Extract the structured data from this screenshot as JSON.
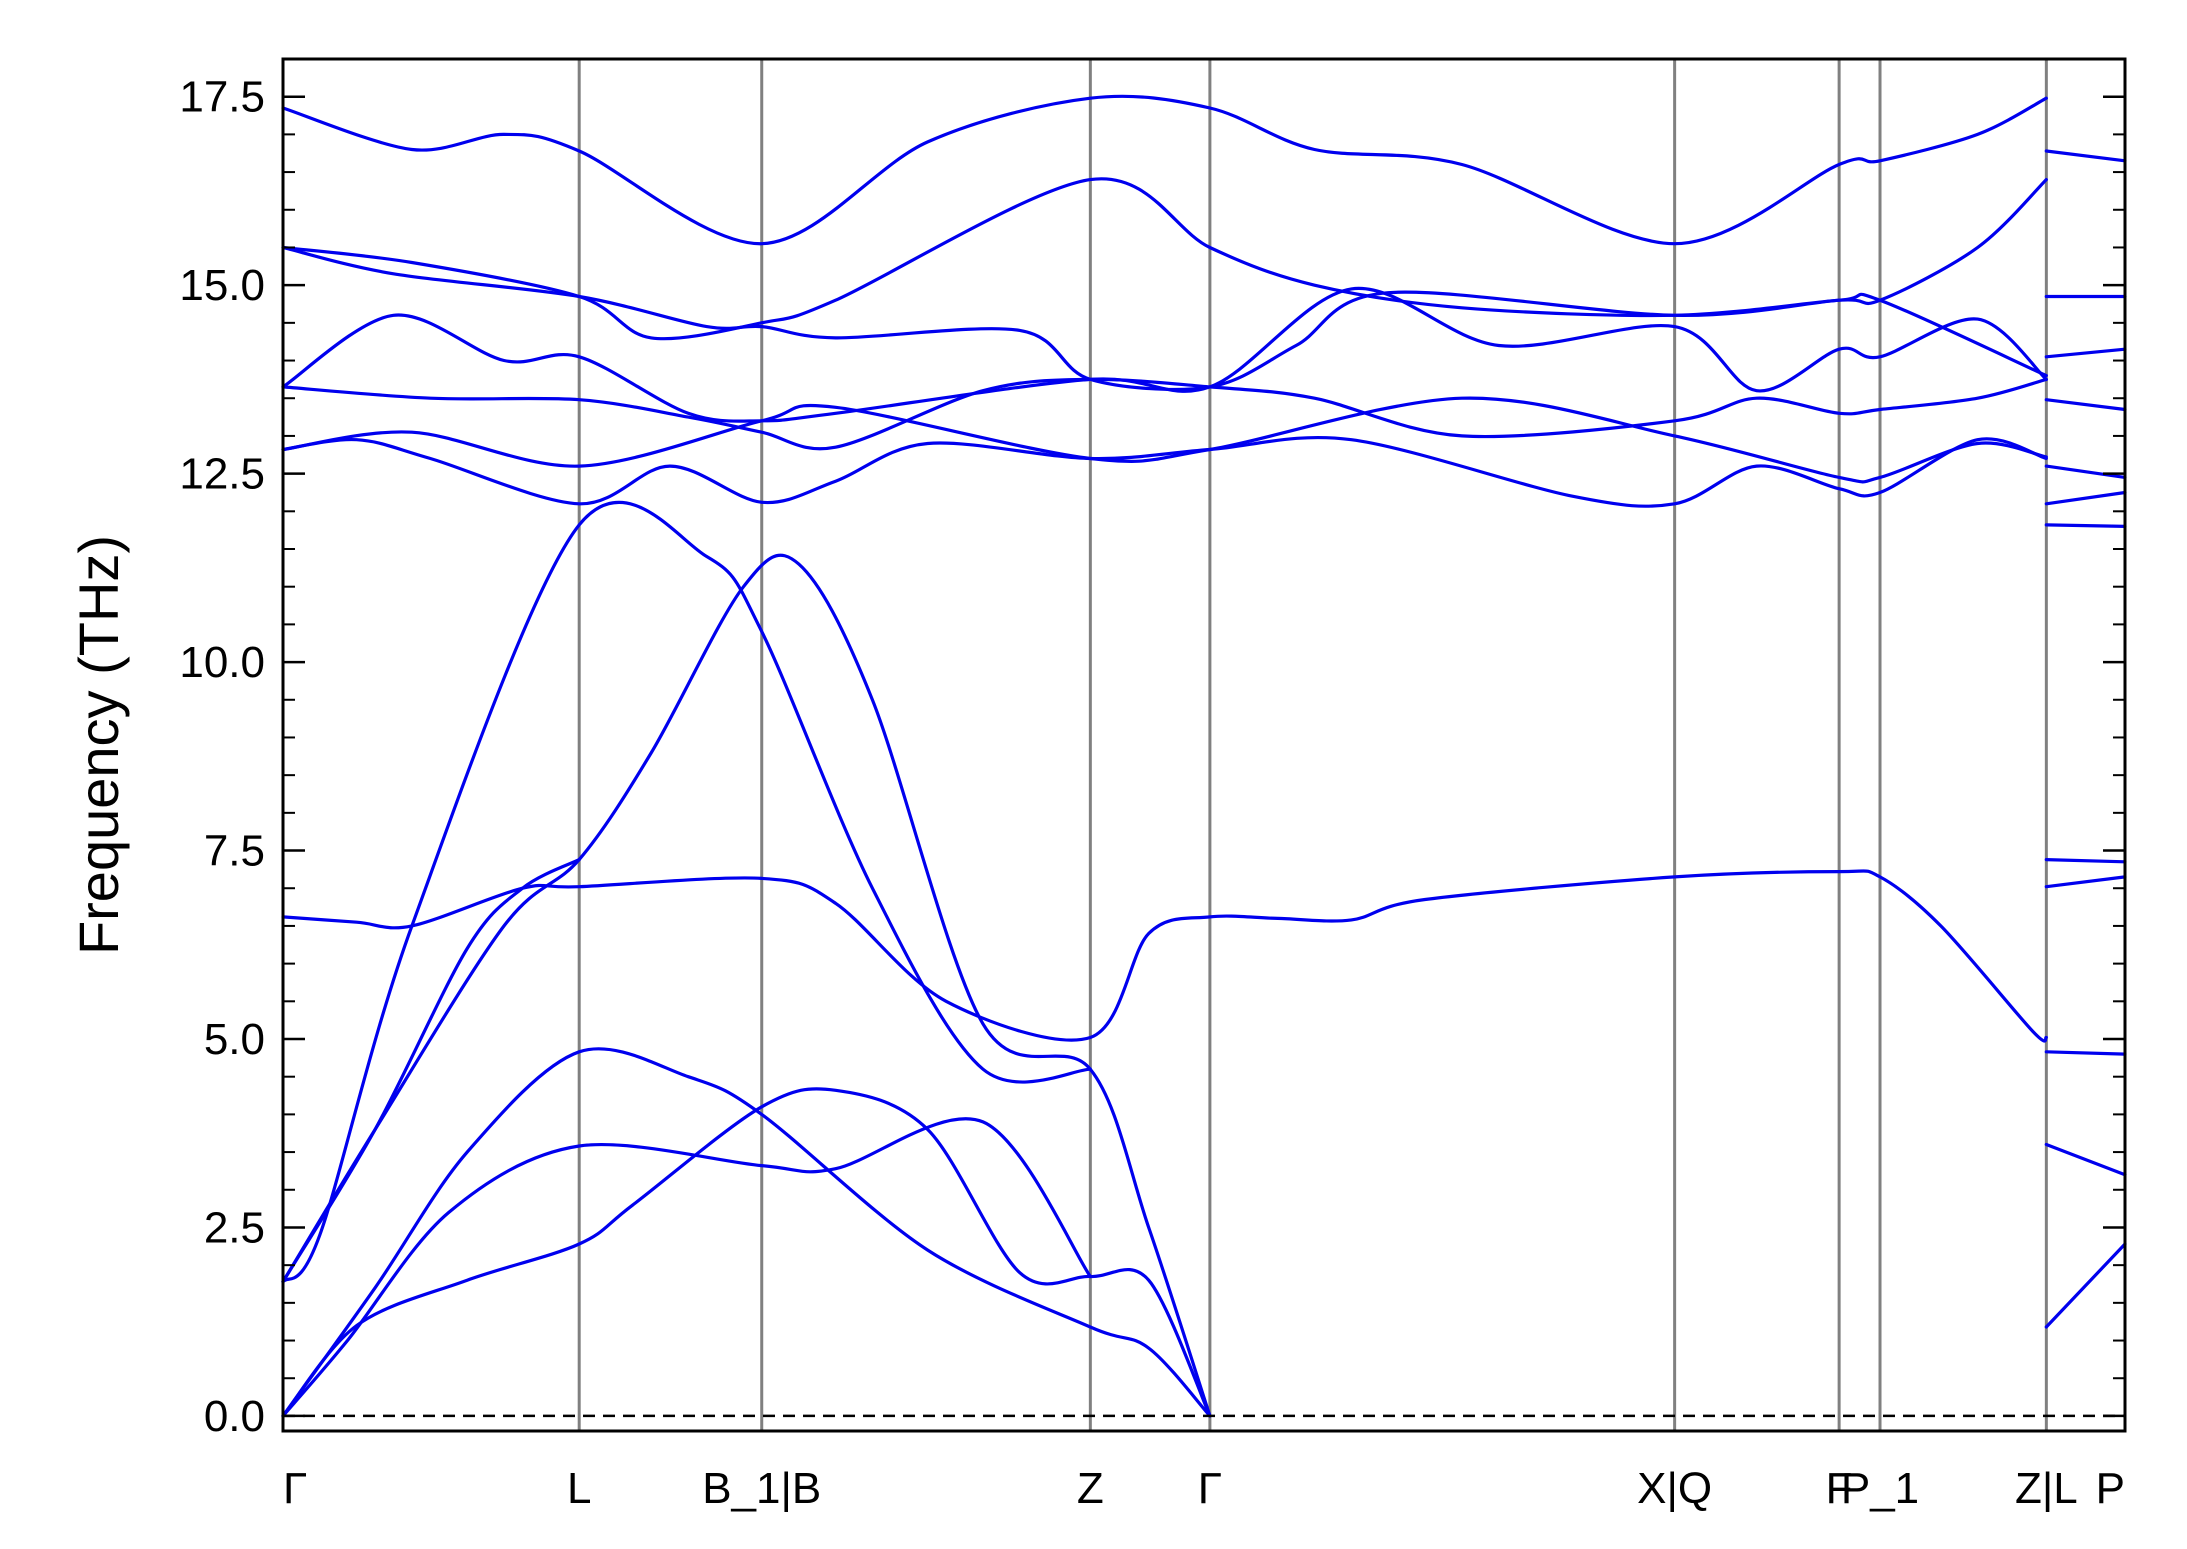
{
  "chart_data": {
    "type": "line",
    "title": "",
    "xlabel": "",
    "ylabel": "Frequency (THz)",
    "ylim": [
      -0.2,
      18.0
    ],
    "grid": false,
    "legend": "none",
    "line_color": "#0000ee",
    "kpoint_line_color": "#808080",
    "zero_line": {
      "y": 0.0,
      "style": "dashed",
      "color": "#000000"
    },
    "yticks": [
      "0.0",
      "2.5",
      "5.0",
      "7.5",
      "10.0",
      "12.5",
      "15.0",
      "17.5"
    ],
    "ytick_values": [
      0.0,
      2.5,
      5.0,
      7.5,
      10.0,
      12.5,
      15.0,
      17.5
    ],
    "kpoints": [
      {
        "label": "Γ",
        "x": 0.0
      },
      {
        "label": "L",
        "x": 0.1608
      },
      {
        "label": "B_1|B",
        "x": 0.2599
      },
      {
        "label": "Z",
        "x": 0.4383
      },
      {
        "label": "Γ",
        "x": 0.5032
      },
      {
        "label": "X|Q",
        "x": 0.7555
      },
      {
        "label": "F",
        "x": 0.8448
      },
      {
        "label": "P_1",
        "x": 0.867
      },
      {
        "label": "Z|L",
        "x": 0.9573
      },
      {
        "label": "P",
        "x": 1.0
      }
    ],
    "bands": [
      {
        "name": "band-1",
        "points": [
          [
            0,
            0
          ],
          [
            0.04,
            1.2
          ],
          [
            0.1,
            1.8
          ],
          [
            0.1608,
            2.28
          ],
          [
            0.19,
            2.8
          ],
          [
            0.2599,
            4.1
          ],
          [
            0.3,
            4.32
          ],
          [
            0.35,
            3.8
          ],
          [
            0.4,
            1.9
          ],
          [
            0.4383,
            1.85
          ],
          [
            0.47,
            1.8
          ],
          [
            0.5032,
            0
          ]
        ]
      },
      {
        "name": "band-2",
        "points": [
          [
            0,
            0
          ],
          [
            0.035,
            1.0
          ],
          [
            0.09,
            2.7
          ],
          [
            0.1608,
            3.58
          ],
          [
            0.2599,
            3.32
          ],
          [
            0.3,
            3.28
          ],
          [
            0.38,
            3.9
          ],
          [
            0.4383,
            1.85
          ]
        ]
      },
      {
        "name": "band-3",
        "points": [
          [
            0,
            0
          ],
          [
            0.05,
            1.7
          ],
          [
            0.1,
            3.5
          ],
          [
            0.1608,
            4.83
          ],
          [
            0.22,
            4.5
          ],
          [
            0.2599,
            4.0
          ],
          [
            0.35,
            2.2
          ],
          [
            0.4383,
            1.18
          ],
          [
            0.47,
            0.9
          ],
          [
            0.5032,
            0
          ]
        ]
      },
      {
        "name": "band-4",
        "points": [
          [
            0,
            1.78
          ],
          [
            0.05,
            3.8
          ],
          [
            0.12,
            6.5
          ],
          [
            0.1608,
            7.38
          ],
          [
            0.2,
            8.8
          ],
          [
            0.25,
            11.0
          ],
          [
            0.28,
            11.3
          ],
          [
            0.32,
            9.5
          ],
          [
            0.38,
            5.2
          ],
          [
            0.4383,
            4.6
          ],
          [
            0.47,
            2.5
          ],
          [
            0.5032,
            0
          ]
        ]
      },
      {
        "name": "band-5",
        "points": [
          [
            0,
            1.78
          ],
          [
            0.02,
            2.4
          ],
          [
            0.07,
            6.5
          ],
          [
            0.1608,
            11.82
          ],
          [
            0.23,
            11.4
          ],
          [
            0.26,
            10.4
          ],
          [
            0.32,
            7.0
          ],
          [
            0.38,
            4.6
          ],
          [
            0.4383,
            4.6
          ]
        ]
      },
      {
        "name": "band-6",
        "points": [
          [
            0,
            6.62
          ],
          [
            0.04,
            6.55
          ],
          [
            0.07,
            6.5
          ],
          [
            0.13,
            7.0
          ],
          [
            0.1608,
            7.02
          ],
          [
            0.2599,
            7.13
          ],
          [
            0.3,
            6.8
          ],
          [
            0.36,
            5.5
          ],
          [
            0.4383,
            5.02
          ],
          [
            0.47,
            6.4
          ],
          [
            0.5032,
            6.62
          ],
          [
            0.54,
            6.6
          ],
          [
            0.58,
            6.58
          ],
          [
            0.62,
            6.85
          ],
          [
            0.7555,
            7.15
          ],
          [
            0.8448,
            7.22
          ],
          [
            0.867,
            7.15
          ],
          [
            0.9,
            6.5
          ],
          [
            0.95,
            5.1
          ],
          [
            0.9573,
            5.02
          ]
        ]
      },
      {
        "name": "band-7",
        "points": [
          [
            0,
            1.78
          ],
          [
            0.05,
            3.8
          ],
          [
            0.1,
            6.2
          ],
          [
            0.13,
            7.0
          ],
          [
            0.1608,
            7.38
          ]
        ]
      },
      {
        "name": "band-8",
        "points": [
          [
            0,
            12.82
          ],
          [
            0.04,
            12.95
          ],
          [
            0.08,
            12.7
          ],
          [
            0.1608,
            12.1
          ],
          [
            0.21,
            12.6
          ],
          [
            0.2599,
            12.12
          ],
          [
            0.3,
            12.4
          ],
          [
            0.35,
            12.9
          ],
          [
            0.4383,
            12.7
          ],
          [
            0.5032,
            12.82
          ],
          [
            0.58,
            12.95
          ],
          [
            0.7,
            12.2
          ],
          [
            0.7555,
            12.1
          ],
          [
            0.8,
            12.6
          ],
          [
            0.8448,
            12.3
          ],
          [
            0.867,
            12.25
          ],
          [
            0.92,
            12.95
          ],
          [
            0.9573,
            12.7
          ]
        ]
      },
      {
        "name": "band-9",
        "points": [
          [
            0,
            12.82
          ],
          [
            0.07,
            13.05
          ],
          [
            0.1608,
            12.6
          ],
          [
            0.2599,
            13.2
          ],
          [
            0.3,
            13.38
          ],
          [
            0.4383,
            12.7
          ],
          [
            0.5032,
            12.82
          ],
          [
            0.64,
            13.5
          ],
          [
            0.7555,
            13.0
          ],
          [
            0.8448,
            12.45
          ],
          [
            0.867,
            12.45
          ],
          [
            0.92,
            12.9
          ],
          [
            0.9573,
            12.72
          ]
        ]
      },
      {
        "name": "band-10",
        "points": [
          [
            0,
            13.65
          ],
          [
            0.08,
            13.5
          ],
          [
            0.1608,
            13.48
          ],
          [
            0.22,
            13.25
          ],
          [
            0.2599,
            13.05
          ],
          [
            0.3,
            12.85
          ],
          [
            0.38,
            13.6
          ],
          [
            0.4383,
            13.75
          ],
          [
            0.5032,
            13.65
          ],
          [
            0.56,
            13.5
          ],
          [
            0.64,
            13.0
          ],
          [
            0.7555,
            13.2
          ],
          [
            0.8,
            13.5
          ],
          [
            0.8448,
            13.3
          ],
          [
            0.867,
            13.35
          ],
          [
            0.92,
            13.5
          ],
          [
            0.9573,
            13.75
          ]
        ]
      },
      {
        "name": "band-11",
        "points": [
          [
            0,
            13.65
          ],
          [
            0.06,
            14.6
          ],
          [
            0.12,
            14.0
          ],
          [
            0.1608,
            14.05
          ],
          [
            0.22,
            13.3
          ],
          [
            0.2599,
            13.2
          ],
          [
            0.3,
            13.3
          ],
          [
            0.4383,
            13.75
          ],
          [
            0.5032,
            13.65
          ],
          [
            0.58,
            14.95
          ],
          [
            0.66,
            14.2
          ],
          [
            0.7555,
            14.45
          ],
          [
            0.8,
            13.6
          ],
          [
            0.8448,
            14.15
          ],
          [
            0.867,
            14.05
          ],
          [
            0.92,
            14.55
          ],
          [
            0.9573,
            13.75
          ]
        ]
      },
      {
        "name": "band-12",
        "points": [
          [
            0,
            15.5
          ],
          [
            0.06,
            15.15
          ],
          [
            0.1608,
            14.85
          ],
          [
            0.23,
            14.45
          ],
          [
            0.2599,
            14.45
          ],
          [
            0.3,
            14.3
          ],
          [
            0.4,
            14.4
          ],
          [
            0.4383,
            13.75
          ],
          [
            0.5032,
            13.65
          ],
          [
            0.55,
            14.2
          ],
          [
            0.6,
            14.9
          ],
          [
            0.7555,
            14.6
          ],
          [
            0.8448,
            14.8
          ],
          [
            0.867,
            14.8
          ],
          [
            0.9573,
            13.8
          ]
        ]
      },
      {
        "name": "band-13",
        "points": [
          [
            0,
            15.5
          ],
          [
            0.07,
            15.3
          ],
          [
            0.1608,
            14.85
          ],
          [
            0.2,
            14.3
          ],
          [
            0.2599,
            14.5
          ],
          [
            0.3,
            14.8
          ],
          [
            0.4383,
            16.4
          ],
          [
            0.5032,
            15.5
          ],
          [
            0.56,
            15.0
          ],
          [
            0.64,
            14.7
          ],
          [
            0.7555,
            14.6
          ],
          [
            0.8448,
            14.8
          ],
          [
            0.867,
            14.8
          ],
          [
            0.92,
            15.5
          ],
          [
            0.9573,
            16.4
          ]
        ]
      },
      {
        "name": "band-14",
        "points": [
          [
            0,
            17.35
          ],
          [
            0.07,
            16.8
          ],
          [
            0.12,
            17.0
          ],
          [
            0.1608,
            16.78
          ],
          [
            0.2599,
            15.55
          ],
          [
            0.35,
            16.9
          ],
          [
            0.4383,
            17.48
          ],
          [
            0.5032,
            17.35
          ],
          [
            0.56,
            16.8
          ],
          [
            0.64,
            16.6
          ],
          [
            0.7555,
            15.55
          ],
          [
            0.8448,
            16.6
          ],
          [
            0.867,
            16.65
          ],
          [
            0.92,
            17.0
          ],
          [
            0.9573,
            17.48
          ]
        ]
      },
      {
        "name": "band-15",
        "points": [
          [
            0.9573,
            1.18
          ],
          [
            1.0,
            2.28
          ]
        ]
      },
      {
        "name": "band-16",
        "points": [
          [
            0.9573,
            3.6
          ],
          [
            1.0,
            3.2
          ]
        ]
      },
      {
        "name": "band-17",
        "points": [
          [
            0.9573,
            4.83
          ],
          [
            1.0,
            4.8
          ]
        ]
      },
      {
        "name": "band-18",
        "points": [
          [
            0.9573,
            7.02
          ],
          [
            1.0,
            7.15
          ]
        ]
      },
      {
        "name": "band-19",
        "points": [
          [
            0.9573,
            7.38
          ],
          [
            1.0,
            7.35
          ]
        ]
      },
      {
        "name": "band-20",
        "points": [
          [
            0.9573,
            11.82
          ],
          [
            1.0,
            11.8
          ]
        ]
      },
      {
        "name": "band-21",
        "points": [
          [
            0.9573,
            12.1
          ],
          [
            1.0,
            12.25
          ]
        ]
      },
      {
        "name": "band-22",
        "points": [
          [
            0.9573,
            12.6
          ],
          [
            1.0,
            12.45
          ]
        ]
      },
      {
        "name": "band-23",
        "points": [
          [
            0.9573,
            13.48
          ],
          [
            1.0,
            13.35
          ]
        ]
      },
      {
        "name": "band-24",
        "points": [
          [
            0.9573,
            14.05
          ],
          [
            1.0,
            14.15
          ]
        ]
      },
      {
        "name": "band-25",
        "points": [
          [
            0.9573,
            14.85
          ],
          [
            1.0,
            14.85
          ]
        ]
      },
      {
        "name": "band-26",
        "points": [
          [
            0.9573,
            16.78
          ],
          [
            1.0,
            16.65
          ]
        ]
      }
    ]
  }
}
